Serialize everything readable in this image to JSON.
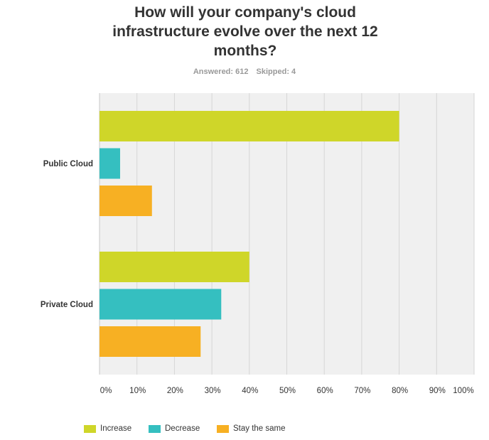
{
  "header": {
    "title_lines": [
      "How will your company's cloud",
      "infrastructure evolve over the next 12",
      "months?"
    ],
    "answered": "Answered: 612",
    "skipped": "Skipped: 4"
  },
  "chart_data": {
    "type": "bar",
    "orientation": "horizontal",
    "categories": [
      "Public Cloud",
      "Private Cloud"
    ],
    "series": [
      {
        "name": "Increase",
        "color": "#cfd629",
        "values": [
          80,
          40
        ]
      },
      {
        "name": "Decrease",
        "color": "#35bfc0",
        "values": [
          5.5,
          32.5
        ]
      },
      {
        "name": "Stay the same",
        "color": "#f7b023",
        "values": [
          14,
          27
        ]
      }
    ],
    "xlim": [
      0,
      100
    ],
    "xticks": [
      "0%",
      "10%",
      "20%",
      "30%",
      "40%",
      "50%",
      "60%",
      "70%",
      "80%",
      "90%",
      "100%"
    ],
    "grid": true,
    "legend_position": "bottom-left"
  }
}
